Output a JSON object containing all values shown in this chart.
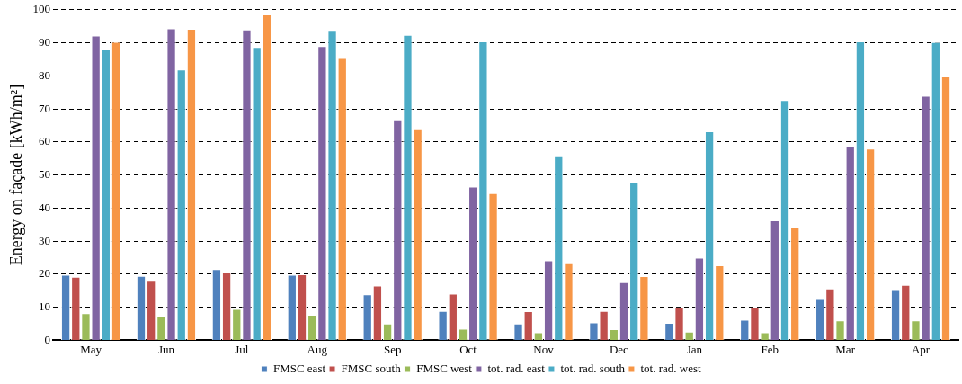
{
  "chart_data": {
    "type": "bar",
    "ylabel": "Energy on façade [kWh/m²]",
    "categories": [
      "May",
      "Jun",
      "Jul",
      "Aug",
      "Sep",
      "Oct",
      "Nov",
      "Dec",
      "Jan",
      "Feb",
      "Mar",
      "Apr"
    ],
    "series": [
      {
        "name": "FMSC east",
        "color": "#4f81bd",
        "values": [
          19.8,
          19.5,
          21.5,
          19.8,
          13.9,
          8.9,
          5.1,
          5.4,
          5.3,
          6.2,
          12.5,
          15.2
        ]
      },
      {
        "name": "FMSC south",
        "color": "#c0504d",
        "values": [
          19.2,
          18,
          20.5,
          20,
          16.6,
          14.1,
          8.8,
          8.9,
          10,
          10,
          15.7,
          16.8
        ]
      },
      {
        "name": "FMSC west",
        "color": "#9bbb59",
        "values": [
          8.2,
          7.3,
          9.5,
          7.7,
          5.1,
          3.5,
          2.4,
          3.4,
          2.6,
          2.4,
          6,
          6
        ]
      },
      {
        "name": "tot. rad. east",
        "color": "#8064a2",
        "values": [
          92.2,
          94.4,
          94,
          89,
          66.8,
          46.5,
          24.2,
          17.6,
          25,
          36.3,
          58.6,
          74
        ]
      },
      {
        "name": "tot. rad. south",
        "color": "#4bacc6",
        "values": [
          88,
          81.9,
          88.7,
          93.6,
          92.4,
          90.4,
          55.7,
          47.8,
          63.2,
          72.7,
          90.4,
          90.2
        ]
      },
      {
        "name": "tot. rad. west",
        "color": "#f79646",
        "values": [
          90.3,
          94.2,
          98.6,
          85.4,
          63.8,
          44.5,
          23.3,
          19.4,
          22.7,
          34.2,
          58,
          79.8
        ]
      }
    ],
    "ylim": [
      0,
      100
    ],
    "yticks": [
      0,
      10,
      20,
      30,
      40,
      50,
      60,
      70,
      80,
      90,
      100
    ],
    "grid": "y",
    "legend": "bottom"
  }
}
